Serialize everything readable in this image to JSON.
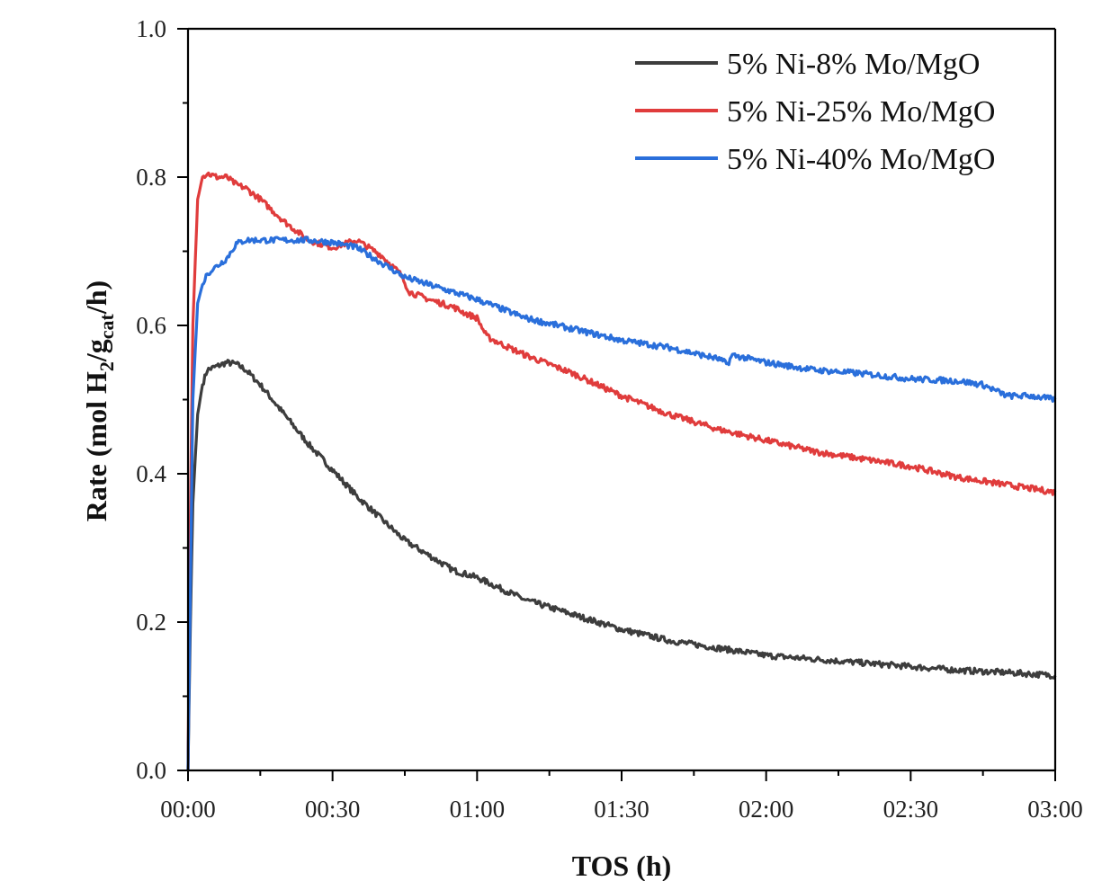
{
  "chart_data": {
    "type": "line",
    "xlabel": "TOS (h)",
    "ylabel": {
      "prefix": "Rate (mol H",
      "sub1": "2",
      "mid": "/g",
      "sub2": "cat",
      "suffix": "/h)"
    },
    "xlim": [
      0,
      180
    ],
    "ylim": [
      0,
      1.0
    ],
    "x_ticks": [
      {
        "value": 0,
        "label": "00:00"
      },
      {
        "value": 30,
        "label": "00:30"
      },
      {
        "value": 60,
        "label": "01:00"
      },
      {
        "value": 90,
        "label": "01:30"
      },
      {
        "value": 120,
        "label": "02:00"
      },
      {
        "value": 150,
        "label": "02:30"
      },
      {
        "value": 180,
        "label": "03:00"
      }
    ],
    "y_ticks": [
      {
        "value": 0.0,
        "label": "0.0"
      },
      {
        "value": 0.2,
        "label": "0.2"
      },
      {
        "value": 0.4,
        "label": "0.4"
      },
      {
        "value": 0.6,
        "label": "0.6"
      },
      {
        "value": 0.8,
        "label": "0.8"
      },
      {
        "value": 1.0,
        "label": "1.0"
      }
    ],
    "legend_position": "top-right",
    "series": [
      {
        "name": "5% Ni-8% Mo/MgO",
        "color": "#3d3d3d",
        "x": [
          0,
          0.5,
          1,
          2,
          3,
          4,
          6,
          8,
          10,
          12,
          15,
          20,
          25,
          30,
          35,
          40,
          45,
          50,
          55,
          60,
          65,
          70,
          80,
          90,
          100,
          110,
          120,
          130,
          140,
          150,
          160,
          170,
          180
        ],
        "y": [
          0.0,
          0.2,
          0.36,
          0.48,
          0.52,
          0.54,
          0.545,
          0.55,
          0.548,
          0.54,
          0.52,
          0.48,
          0.44,
          0.405,
          0.37,
          0.34,
          0.31,
          0.29,
          0.27,
          0.26,
          0.245,
          0.23,
          0.21,
          0.19,
          0.175,
          0.165,
          0.155,
          0.15,
          0.145,
          0.14,
          0.135,
          0.132,
          0.128
        ]
      },
      {
        "name": "5% Ni-25% Mo/MgO",
        "color": "#e03c3c",
        "x": [
          0,
          0.5,
          1,
          2,
          3,
          4,
          6,
          8,
          10,
          12,
          15,
          20,
          25,
          30,
          35,
          40,
          44,
          46,
          50,
          55,
          58,
          60,
          62,
          65,
          70,
          80,
          90,
          100,
          110,
          120,
          130,
          140,
          150,
          160,
          170,
          180
        ],
        "y": [
          0.0,
          0.35,
          0.6,
          0.77,
          0.8,
          0.805,
          0.8,
          0.8,
          0.79,
          0.785,
          0.77,
          0.74,
          0.715,
          0.705,
          0.715,
          0.695,
          0.67,
          0.645,
          0.635,
          0.625,
          0.615,
          0.61,
          0.585,
          0.575,
          0.56,
          0.535,
          0.505,
          0.48,
          0.46,
          0.445,
          0.43,
          0.42,
          0.41,
          0.395,
          0.385,
          0.375
        ]
      },
      {
        "name": "5% Ni-40% Mo/MgO",
        "color": "#2a6fdb",
        "x": [
          0,
          0.5,
          1,
          2,
          3,
          4,
          6,
          8,
          9,
          10,
          12,
          15,
          20,
          25,
          30,
          35,
          40,
          45,
          50,
          55,
          60,
          70,
          80,
          90,
          100,
          110,
          112,
          113,
          120,
          130,
          140,
          150,
          160,
          165,
          170,
          175,
          180
        ],
        "y": [
          0.0,
          0.25,
          0.5,
          0.63,
          0.655,
          0.67,
          0.68,
          0.69,
          0.7,
          0.71,
          0.715,
          0.715,
          0.715,
          0.715,
          0.712,
          0.705,
          0.685,
          0.665,
          0.655,
          0.645,
          0.635,
          0.61,
          0.595,
          0.58,
          0.57,
          0.555,
          0.548,
          0.56,
          0.55,
          0.54,
          0.535,
          0.528,
          0.525,
          0.52,
          0.505,
          0.505,
          0.5
        ]
      }
    ]
  }
}
